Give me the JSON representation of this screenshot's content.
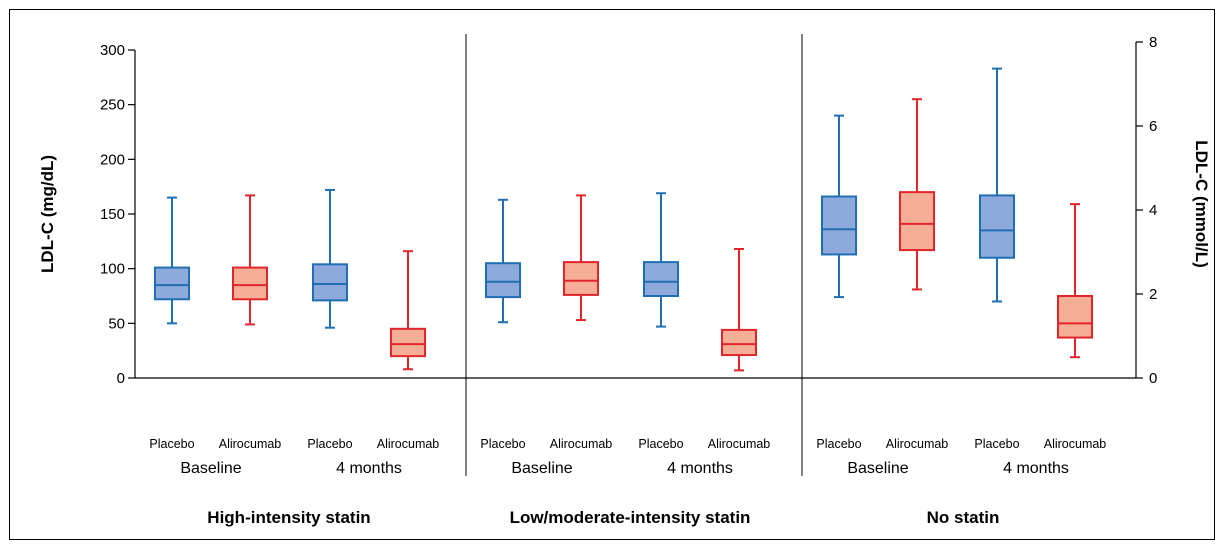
{
  "chart_data": {
    "type": "box",
    "y_left": {
      "label": "LDL-C (mg/dL)",
      "range": [
        0,
        300
      ],
      "ticks": [
        0,
        50,
        100,
        150,
        200,
        250,
        300
      ]
    },
    "y_right": {
      "label": "LDL-C (mmol/L)",
      "range": [
        0,
        8
      ],
      "ticks": [
        0,
        2,
        4,
        6,
        8
      ]
    },
    "legend": "none",
    "grid": false,
    "colors": {
      "placebo_stroke": "#1f6fb4",
      "placebo_fill": "#8ea9dc",
      "alirocumab_stroke": "#e1262b",
      "alirocumab_fill": "#f7ae96"
    },
    "groups": [
      {
        "name": "High-intensity statin",
        "timepoints": [
          {
            "label": "Baseline",
            "boxes": [
              {
                "treatment": "Placebo",
                "min": 50,
                "q1": 72,
                "median": 85,
                "q3": 101,
                "max": 165
              },
              {
                "treatment": "Alirocumab",
                "min": 49,
                "q1": 72,
                "median": 85,
                "q3": 101,
                "max": 167
              }
            ]
          },
          {
            "label": "4 months",
            "boxes": [
              {
                "treatment": "Placebo",
                "min": 46,
                "q1": 71,
                "median": 86,
                "q3": 104,
                "max": 172
              },
              {
                "treatment": "Alirocumab",
                "min": 8,
                "q1": 20,
                "median": 31,
                "q3": 45,
                "max": 116
              }
            ]
          }
        ]
      },
      {
        "name": "Low/moderate-intensity statin",
        "timepoints": [
          {
            "label": "Baseline",
            "boxes": [
              {
                "treatment": "Placebo",
                "min": 51,
                "q1": 74,
                "median": 88,
                "q3": 105,
                "max": 163
              },
              {
                "treatment": "Alirocumab",
                "min": 53,
                "q1": 76,
                "median": 89,
                "q3": 106,
                "max": 167
              }
            ]
          },
          {
            "label": "4 months",
            "boxes": [
              {
                "treatment": "Placebo",
                "min": 47,
                "q1": 75,
                "median": 88,
                "q3": 106,
                "max": 169
              },
              {
                "treatment": "Alirocumab",
                "min": 7,
                "q1": 21,
                "median": 31,
                "q3": 44,
                "max": 118
              }
            ]
          }
        ]
      },
      {
        "name": "No statin",
        "timepoints": [
          {
            "label": "Baseline",
            "boxes": [
              {
                "treatment": "Placebo",
                "min": 74,
                "q1": 113,
                "median": 136,
                "q3": 166,
                "max": 240
              },
              {
                "treatment": "Alirocumab",
                "min": 81,
                "q1": 117,
                "median": 141,
                "q3": 170,
                "max": 255
              }
            ]
          },
          {
            "label": "4 months",
            "boxes": [
              {
                "treatment": "Placebo",
                "min": 70,
                "q1": 110,
                "median": 135,
                "q3": 167,
                "max": 283
              },
              {
                "treatment": "Alirocumab",
                "min": 19,
                "q1": 37,
                "median": 50,
                "q3": 75,
                "max": 159
              }
            ]
          }
        ]
      }
    ]
  }
}
